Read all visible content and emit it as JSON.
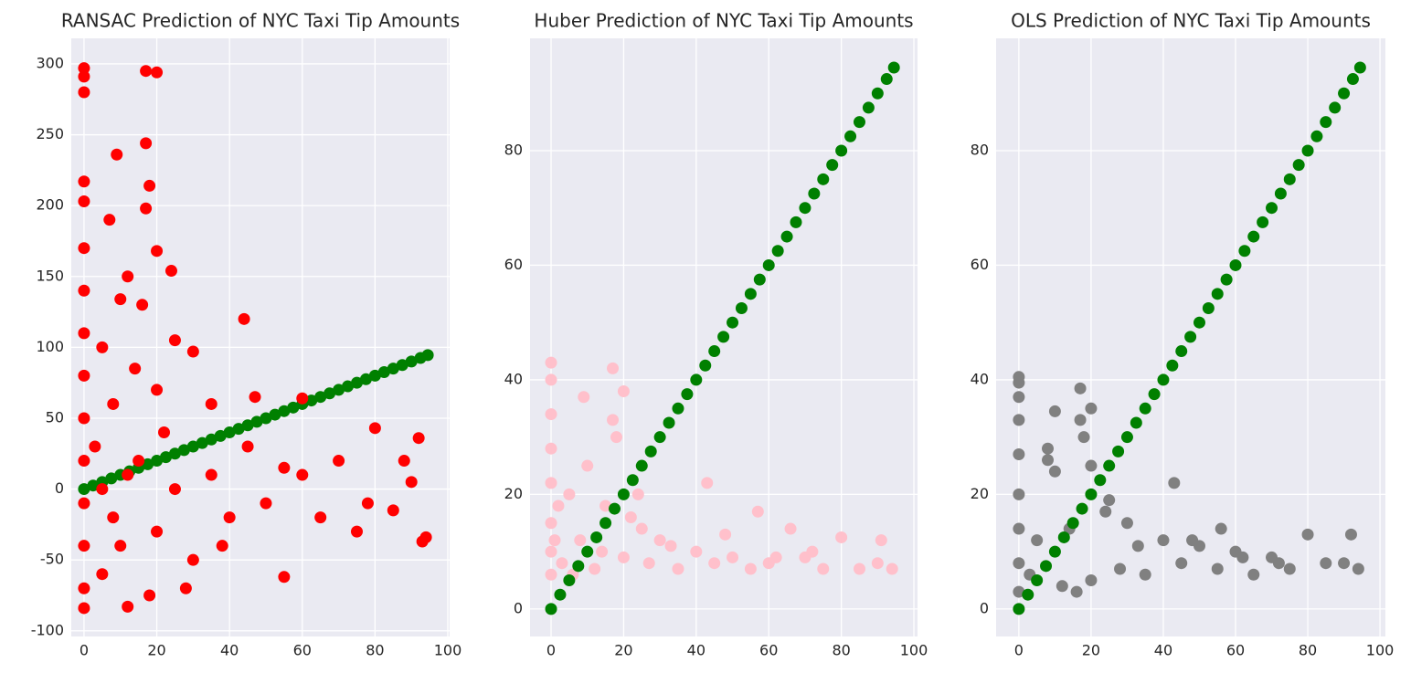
{
  "chart_data": [
    {
      "type": "scatter",
      "title": "RANSAC Prediction of NYC Taxi Tip Amounts",
      "xlim": [
        -3.5,
        100.5
      ],
      "ylim": [
        -104,
        318
      ],
      "xticks": [
        0,
        20,
        40,
        60,
        80,
        100
      ],
      "yticks": [
        -100,
        -50,
        0,
        50,
        100,
        150,
        200,
        250,
        300
      ],
      "grid": true,
      "series": [
        {
          "color": "#008000",
          "x": [
            0,
            2.5,
            5,
            7.5,
            10,
            12.5,
            15,
            17.5,
            20,
            22.5,
            25,
            27.5,
            30,
            32.5,
            35,
            37.5,
            40,
            42.5,
            45,
            47.5,
            50,
            52.5,
            55,
            57.5,
            60,
            62.5,
            65,
            67.5,
            70,
            72.5,
            75,
            77.5,
            80,
            82.5,
            85,
            87.5,
            90,
            92.5,
            94.5
          ],
          "values": [
            0,
            2.5,
            5,
            7.5,
            10,
            12.5,
            15,
            17.5,
            20,
            22.5,
            25,
            27.5,
            30,
            32.5,
            35,
            37.5,
            40,
            42.5,
            45,
            47.5,
            50,
            52.5,
            55,
            57.5,
            60,
            62.5,
            65,
            67.5,
            70,
            72.5,
            75,
            77.5,
            80,
            82.5,
            85,
            87.5,
            90,
            92.5,
            94.5
          ]
        },
        {
          "color": "#ff0000",
          "x": [
            0,
            0,
            0,
            0,
            0,
            0,
            0,
            0,
            0,
            0,
            0,
            0,
            0,
            0,
            0,
            17,
            20,
            17,
            9,
            18,
            7,
            17,
            20,
            24,
            12,
            44,
            10,
            16,
            25,
            5,
            30,
            14,
            8,
            20,
            35,
            47,
            60,
            80,
            92,
            93,
            94,
            55,
            12,
            18,
            28,
            5,
            10,
            20,
            15,
            25,
            35,
            40,
            50,
            60,
            70,
            75,
            85,
            90,
            3,
            8,
            22,
            45,
            65,
            55,
            78,
            88,
            30,
            38,
            5,
            12
          ],
          "values": [
            297,
            291,
            280,
            217,
            203,
            170,
            140,
            110,
            80,
            50,
            20,
            -10,
            -40,
            -70,
            -84,
            295,
            294,
            244,
            236,
            214,
            190,
            198,
            168,
            154,
            150,
            120,
            134,
            130,
            105,
            100,
            97,
            85,
            60,
            70,
            60,
            65,
            64,
            43,
            36,
            -37,
            -34,
            -62,
            -83,
            -75,
            -70,
            -60,
            -40,
            -30,
            20,
            0,
            10,
            -20,
            -10,
            10,
            20,
            -30,
            -15,
            5,
            30,
            -20,
            40,
            30,
            -20,
            15,
            -10,
            20,
            -50,
            -40,
            0,
            10
          ]
        }
      ]
    },
    {
      "type": "scatter",
      "title": "Huber Prediction of NYC Taxi Tip Amounts",
      "xlim": [
        -5.8,
        101
      ],
      "ylim": [
        -4.8,
        99.6
      ],
      "xticks": [
        0,
        20,
        40,
        60,
        80,
        100
      ],
      "yticks": [
        0,
        20,
        40,
        60,
        80
      ],
      "grid": true,
      "series": [
        {
          "color": "#ffc0cb",
          "x": [
            0,
            0,
            0,
            0,
            0,
            0,
            0,
            0,
            17,
            9,
            20,
            17,
            18,
            10,
            5,
            15,
            22,
            25,
            30,
            43,
            57,
            66,
            80,
            91,
            40,
            50,
            60,
            70,
            85,
            94,
            3,
            8,
            12,
            20,
            27,
            35,
            45,
            55,
            75,
            90,
            1,
            2,
            6,
            14,
            24,
            33,
            48,
            62,
            72
          ],
          "values": [
            43,
            40,
            34,
            28,
            22,
            15,
            10,
            6,
            42,
            37,
            38,
            33,
            30,
            25,
            20,
            18,
            16,
            14,
            12,
            22,
            17,
            14,
            12.5,
            12,
            10,
            9,
            8,
            9,
            7,
            7,
            8,
            12,
            7,
            9,
            8,
            7,
            8,
            7,
            7,
            8,
            12,
            18,
            6,
            10,
            20,
            11,
            13,
            9,
            10
          ]
        },
        {
          "color": "#008000",
          "x": [
            0,
            2.5,
            5,
            7.5,
            10,
            12.5,
            15,
            17.5,
            20,
            22.5,
            25,
            27.5,
            30,
            32.5,
            35,
            37.5,
            40,
            42.5,
            45,
            47.5,
            50,
            52.5,
            55,
            57.5,
            60,
            62.5,
            65,
            67.5,
            70,
            72.5,
            75,
            77.5,
            80,
            82.5,
            85,
            87.5,
            90,
            92.5,
            94.5
          ],
          "values": [
            0,
            2.5,
            5,
            7.5,
            10,
            12.5,
            15,
            17.5,
            20,
            22.5,
            25,
            27.5,
            30,
            32.5,
            35,
            37.5,
            40,
            42.5,
            45,
            47.5,
            50,
            52.5,
            55,
            57.5,
            60,
            62.5,
            65,
            67.5,
            70,
            72.5,
            75,
            77.5,
            80,
            82.5,
            85,
            87.5,
            90,
            92.5,
            94.5
          ]
        }
      ]
    },
    {
      "type": "scatter",
      "title": "OLS Prediction of NYC Taxi Tip Amounts",
      "xlim": [
        -6.3,
        101.5
      ],
      "ylim": [
        -4.8,
        99.6
      ],
      "xticks": [
        0,
        20,
        40,
        60,
        80,
        100
      ],
      "yticks": [
        0,
        20,
        40,
        60,
        80
      ],
      "grid": true,
      "series": [
        {
          "color": "#808080",
          "x": [
            0,
            0,
            0,
            0,
            0,
            0,
            0,
            0,
            0,
            17,
            10,
            20,
            17,
            8,
            18,
            8,
            20,
            10,
            25,
            30,
            43,
            56,
            80,
            92,
            40,
            50,
            60,
            70,
            85,
            94,
            3,
            12,
            20,
            28,
            35,
            45,
            55,
            65,
            75,
            90,
            5,
            14,
            24,
            33,
            48,
            62,
            72,
            16
          ],
          "values": [
            40.5,
            39.5,
            37,
            33,
            27,
            20,
            14,
            8,
            3,
            38.5,
            34.5,
            35,
            33,
            28,
            30,
            26,
            25,
            24,
            19,
            15,
            22,
            14,
            13,
            13,
            12,
            11,
            10,
            9,
            8,
            7,
            6,
            4,
            5,
            7,
            6,
            8,
            7,
            6,
            7,
            8,
            12,
            14,
            17,
            11,
            12,
            9,
            8,
            3
          ]
        },
        {
          "color": "#008000",
          "x": [
            0,
            2.5,
            5,
            7.5,
            10,
            12.5,
            15,
            17.5,
            20,
            22.5,
            25,
            27.5,
            30,
            32.5,
            35,
            37.5,
            40,
            42.5,
            45,
            47.5,
            50,
            52.5,
            55,
            57.5,
            60,
            62.5,
            65,
            67.5,
            70,
            72.5,
            75,
            77.5,
            80,
            82.5,
            85,
            87.5,
            90,
            92.5,
            94.5
          ],
          "values": [
            0,
            2.5,
            5,
            7.5,
            10,
            12.5,
            15,
            17.5,
            20,
            22.5,
            25,
            27.5,
            30,
            32.5,
            35,
            37.5,
            40,
            42.5,
            45,
            47.5,
            50,
            52.5,
            55,
            57.5,
            60,
            62.5,
            65,
            67.5,
            70,
            72.5,
            75,
            77.5,
            80,
            82.5,
            85,
            87.5,
            90,
            92.5,
            94.5
          ]
        }
      ]
    }
  ]
}
